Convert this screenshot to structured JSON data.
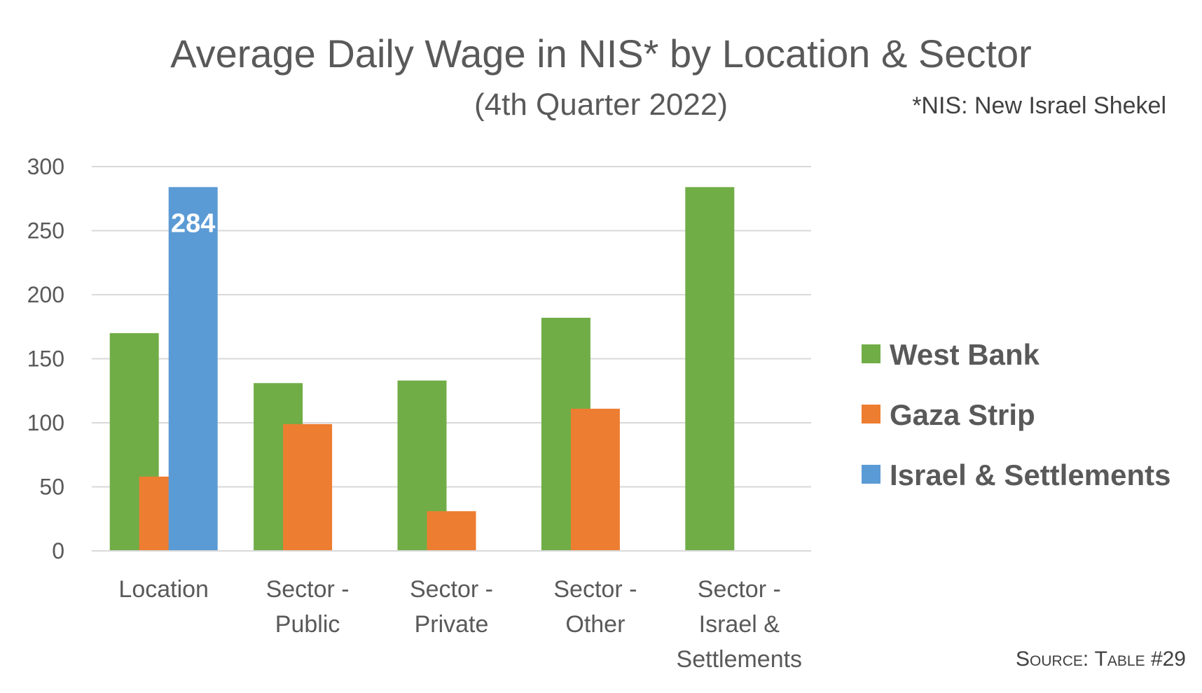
{
  "chart_data": {
    "type": "bar",
    "title": "Average Daily Wage in NIS* by Location & Sector",
    "subtitle": "(4th Quarter 2022)",
    "note": "*NIS: New Israel Shekel",
    "source_prefix": "Source:",
    "source_rest": "Table #29",
    "categories": [
      [
        "Location"
      ],
      [
        "Sector -",
        "Public"
      ],
      [
        "Sector -",
        "Private"
      ],
      [
        "Sector -",
        "Other"
      ],
      [
        "Sector -",
        "Israel &",
        "Settlements"
      ]
    ],
    "series": [
      {
        "name": "West Bank",
        "color": "#70AD47",
        "values": [
          170,
          131,
          133,
          182,
          284
        ]
      },
      {
        "name": "Gaza Strip",
        "color": "#ED7D31",
        "values": [
          58,
          99,
          31,
          111,
          null
        ]
      },
      {
        "name": "Israel & Settlements",
        "color": "#5B9BD5",
        "values": [
          284,
          null,
          null,
          null,
          null
        ]
      }
    ],
    "data_labels": [
      {
        "series": 2,
        "index": 0,
        "text": "284"
      }
    ],
    "ylim": [
      0,
      300
    ],
    "yticks": [
      0,
      50,
      100,
      150,
      200,
      250,
      300
    ],
    "grid": true,
    "legend_position": "right",
    "xlabel": "",
    "ylabel": ""
  }
}
